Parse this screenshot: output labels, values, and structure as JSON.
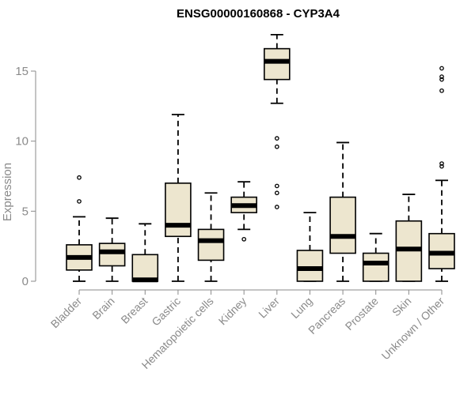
{
  "chart_data": {
    "type": "boxplot",
    "title": "ENSG00000160868 - CYP3A4",
    "xlabel": "",
    "ylabel": "Expression",
    "ylim": [
      0,
      17.5
    ],
    "yticks": [
      0,
      5,
      10,
      15
    ],
    "box_fill": "#ede6cf",
    "median_color": "#000000",
    "categories": [
      "Bladder",
      "Brain",
      "Breast",
      "Gastric",
      "Hematopoietic cells",
      "Kidney",
      "Liver",
      "Lung",
      "Pancreas",
      "Prostate",
      "Skin",
      "Unknown / Other"
    ],
    "boxes": [
      {
        "whisker_low": 0,
        "q1": 0.8,
        "median": 1.7,
        "q3": 2.6,
        "whisker_high": 4.6,
        "outliers": [
          5.7,
          7.4
        ]
      },
      {
        "whisker_low": 0,
        "q1": 1.1,
        "median": 2.1,
        "q3": 2.7,
        "whisker_high": 4.5,
        "outliers": []
      },
      {
        "whisker_low": 0,
        "q1": 0,
        "median": 0.1,
        "q3": 1.9,
        "whisker_high": 4.1,
        "outliers": []
      },
      {
        "whisker_low": 0,
        "q1": 3.2,
        "median": 4.0,
        "q3": 7.0,
        "whisker_high": 11.9,
        "outliers": []
      },
      {
        "whisker_low": 0,
        "q1": 1.5,
        "median": 2.9,
        "q3": 3.7,
        "whisker_high": 6.3,
        "outliers": []
      },
      {
        "whisker_low": 3.7,
        "q1": 4.9,
        "median": 5.4,
        "q3": 6.0,
        "whisker_high": 7.1,
        "outliers": [
          3.0
        ]
      },
      {
        "whisker_low": 12.7,
        "q1": 14.4,
        "median": 15.7,
        "q3": 16.6,
        "whisker_high": 17.6,
        "outliers": [
          5.3,
          6.3,
          6.8,
          9.6,
          10.2
        ]
      },
      {
        "whisker_low": 0,
        "q1": 0,
        "median": 0.9,
        "q3": 2.2,
        "whisker_high": 4.9,
        "outliers": []
      },
      {
        "whisker_low": 0,
        "q1": 2.0,
        "median": 3.2,
        "q3": 6.0,
        "whisker_high": 9.9,
        "outliers": []
      },
      {
        "whisker_low": 0,
        "q1": 0,
        "median": 1.3,
        "q3": 2.0,
        "whisker_high": 3.4,
        "outliers": []
      },
      {
        "whisker_low": 0,
        "q1": 0,
        "median": 2.3,
        "q3": 4.3,
        "whisker_high": 6.2,
        "outliers": []
      },
      {
        "whisker_low": 0,
        "q1": 0.9,
        "median": 2.0,
        "q3": 3.4,
        "whisker_high": 7.2,
        "outliers": [
          8.2,
          8.4,
          13.6,
          14.4,
          14.6,
          15.2
        ]
      }
    ]
  }
}
